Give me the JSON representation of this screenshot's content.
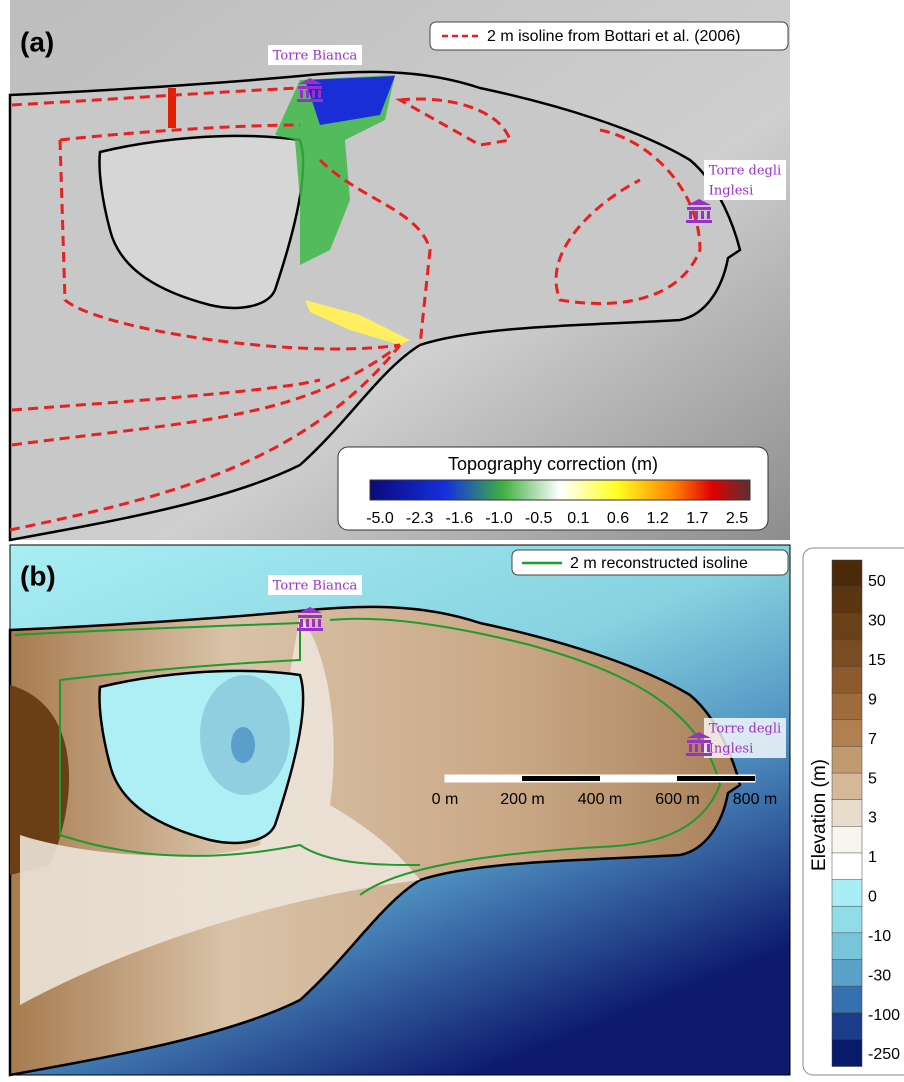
{
  "panel_a": {
    "label": "(a)",
    "legend": "2 m isoline from Bottari et al. (2006)",
    "places": [
      "Torre Bianca",
      "Torre degli",
      "Inglesi"
    ],
    "colorbar": {
      "title": "Topography correction (m)",
      "ticks": [
        "-5.0",
        "-2.3",
        "-1.6",
        "-1.0",
        "-0.5",
        "0.1",
        "0.6",
        "1.2",
        "1.7",
        "2.5"
      ]
    }
  },
  "panel_b": {
    "label": "(b)",
    "legend": "2 m reconstructed isoline",
    "places": [
      "Torre Bianca",
      "Torre degli",
      "Inglesi"
    ],
    "scale_bar": [
      "0 m",
      "200 m",
      "400 m",
      "600 m",
      "800 m"
    ]
  },
  "elevation_bar": {
    "title": "Elevation (m)",
    "ticks": [
      "50",
      "30",
      "15",
      "9",
      "7",
      "5",
      "3",
      "1",
      "0",
      "-10",
      "-30",
      "-100",
      "-250"
    ]
  }
}
